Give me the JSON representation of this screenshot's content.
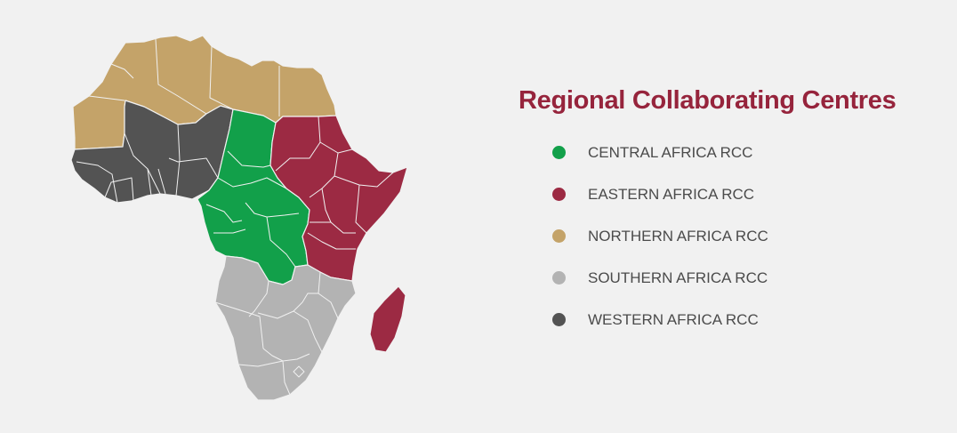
{
  "title": "Regional Collaborating Centres",
  "colors": {
    "title": "#96243c",
    "background": "#f1f1f1"
  },
  "regions": [
    {
      "id": "central",
      "label": "CENTRAL AFRICA RCC",
      "color": "#12a04a"
    },
    {
      "id": "eastern",
      "label": "EASTERN AFRICA RCC",
      "color": "#9c2a43"
    },
    {
      "id": "northern",
      "label": "NORTHERN AFRICA RCC",
      "color": "#c4a369"
    },
    {
      "id": "southern",
      "label": "SOUTHERN AFRICA RCC",
      "color": "#b3b3b3"
    },
    {
      "id": "western",
      "label": "WESTERN AFRICA RCC",
      "color": "#535353"
    }
  ]
}
